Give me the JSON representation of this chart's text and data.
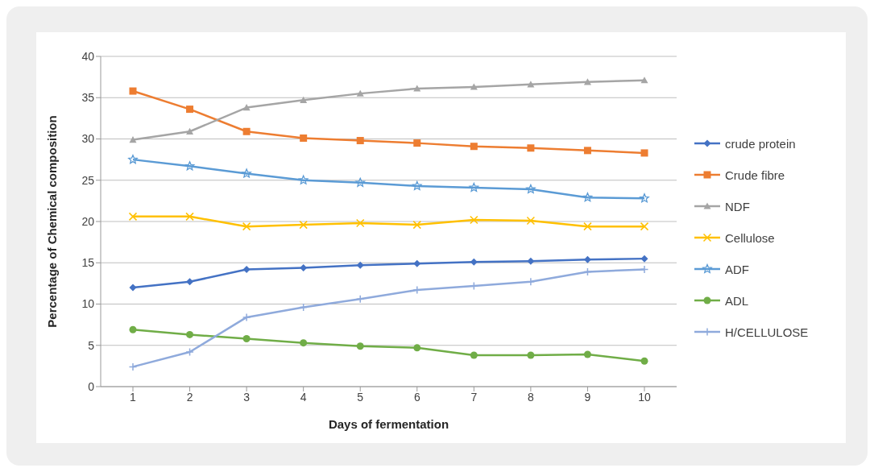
{
  "chart_data": {
    "type": "line",
    "xlabel": "Days of fermentation",
    "ylabel": "Percentage of Chemical composition",
    "categories": [
      "1",
      "2",
      "3",
      "4",
      "5",
      "6",
      "7",
      "8",
      "9",
      "10"
    ],
    "ylim": [
      0,
      40
    ],
    "yticks": [
      0,
      5,
      10,
      15,
      20,
      25,
      30,
      35,
      40
    ],
    "grid": "y",
    "legend": "right",
    "series": [
      {
        "name": "crude protein",
        "color": "#4472c4",
        "marker": "diamond",
        "values": [
          12.0,
          12.7,
          14.2,
          14.4,
          14.7,
          14.9,
          15.1,
          15.2,
          15.4,
          15.5
        ]
      },
      {
        "name": "Crude fibre",
        "color": "#ed7d31",
        "marker": "square",
        "values": [
          35.8,
          33.6,
          30.9,
          30.1,
          29.8,
          29.5,
          29.1,
          28.9,
          28.6,
          28.3
        ]
      },
      {
        "name": "NDF",
        "color": "#a5a5a5",
        "marker": "triangle",
        "values": [
          29.9,
          30.9,
          33.8,
          34.7,
          35.5,
          36.1,
          36.3,
          36.6,
          36.9,
          37.1
        ]
      },
      {
        "name": "Cellulose",
        "color": "#ffc000",
        "marker": "cross",
        "values": [
          20.6,
          20.6,
          19.4,
          19.6,
          19.8,
          19.6,
          20.2,
          20.1,
          19.4,
          19.4
        ]
      },
      {
        "name": "ADF",
        "color": "#5b9bd5",
        "marker": "star",
        "values": [
          27.5,
          26.7,
          25.8,
          25.0,
          24.7,
          24.3,
          24.1,
          23.9,
          22.9,
          22.8
        ]
      },
      {
        "name": "ADL",
        "color": "#70ad47",
        "marker": "circle",
        "values": [
          6.9,
          6.3,
          5.8,
          5.3,
          4.9,
          4.7,
          3.8,
          3.8,
          3.9,
          3.1
        ]
      },
      {
        "name": "H/CELLULOSE",
        "color": "#8faadc",
        "marker": "plus",
        "values": [
          2.4,
          4.2,
          8.4,
          9.6,
          10.6,
          11.7,
          12.2,
          12.7,
          13.9,
          14.2
        ]
      }
    ]
  }
}
